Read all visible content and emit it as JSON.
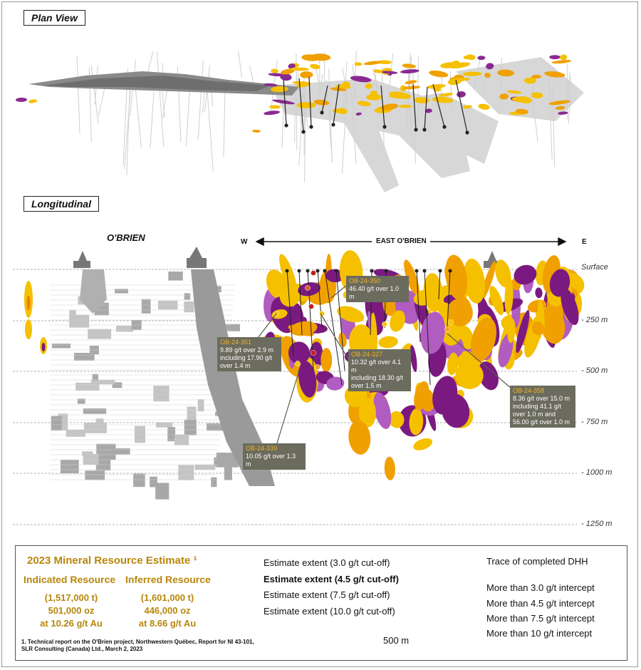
{
  "sections": {
    "plan_view": "Plan View",
    "longitudinal": "Longitudinal"
  },
  "labels": {
    "obrien": "O'BRIEN",
    "east_obrien": "EAST O'BRIEN",
    "west": "W",
    "east": "E"
  },
  "depths": [
    "Surface",
    "- 250 m",
    "- 500 m",
    "- 750 m",
    "- 1000 m",
    "- 1250 m"
  ],
  "callouts": [
    {
      "hole": "OB-24-350",
      "lines": [
        "46.40 g/t over 1.0 m"
      ]
    },
    {
      "hole": "OB-24-351",
      "lines": [
        "9.89 g/t over 2.9 m",
        "including 17.90 g/t",
        "over 1.4 m"
      ]
    },
    {
      "hole": "OB-24-327",
      "lines": [
        "10.32 g/t over 4.1 m",
        "including 18.30 g/t",
        "over 1.5 m"
      ]
    },
    {
      "hole": "OB-24-358",
      "lines": [
        "8.36 g/t over 15.0 m",
        "including 41.1 g/t",
        "over 1.0 m and",
        "56.00 g/t  over 1.0 m"
      ]
    },
    {
      "hole": "OB-24-339",
      "lines": [
        "10.05 g/t over 1.3 m"
      ]
    }
  ],
  "resource": {
    "title": "2023 Mineral Resource Estimate ¹",
    "indicated": {
      "label": "Indicated Resource",
      "tonnes": "(1,517,000 t)",
      "ounces": "501,000 oz",
      "grade": "at 10.26 g/t Au"
    },
    "inferred": {
      "label": "Inferred Resource",
      "tonnes": "(1,601,000 t)",
      "ounces": "446,000 oz",
      "grade": "at 8.66 g/t Au"
    },
    "footnote_1": "1. Technical report on the O'Brien project, Northwestern Québec, Report for NI 43-101,",
    "footnote_2": "SLR Consulting (Canada) Ltd., March 2, 2023"
  },
  "legend": {
    "estimates": [
      {
        "text": "Estimate extent (3.0  g/t cut-off)",
        "color": "#f5c000"
      },
      {
        "text": "Estimate extent (4.5  g/t cut-off)",
        "color": "#f0a000"
      },
      {
        "text": "Estimate extent (7.5 g/t cut-off)",
        "color": "#b05cc0"
      },
      {
        "text": "Estimate extent (10.0 g/t cut-off)",
        "color": "#7a1a80"
      }
    ],
    "trace": "Trace of completed DHH",
    "intercepts": [
      {
        "text": "More than 3.0 g/t intercept",
        "color": "#f5c400"
      },
      {
        "text": "More than 4.5 g/t intercept",
        "color": "#f0a030"
      },
      {
        "text": "More than 7.5 g/t intercept",
        "color": "#e06030"
      },
      {
        "text": "More than 10 g/t intercept",
        "color": "#c0201a"
      }
    ],
    "scale": "500 m"
  }
}
